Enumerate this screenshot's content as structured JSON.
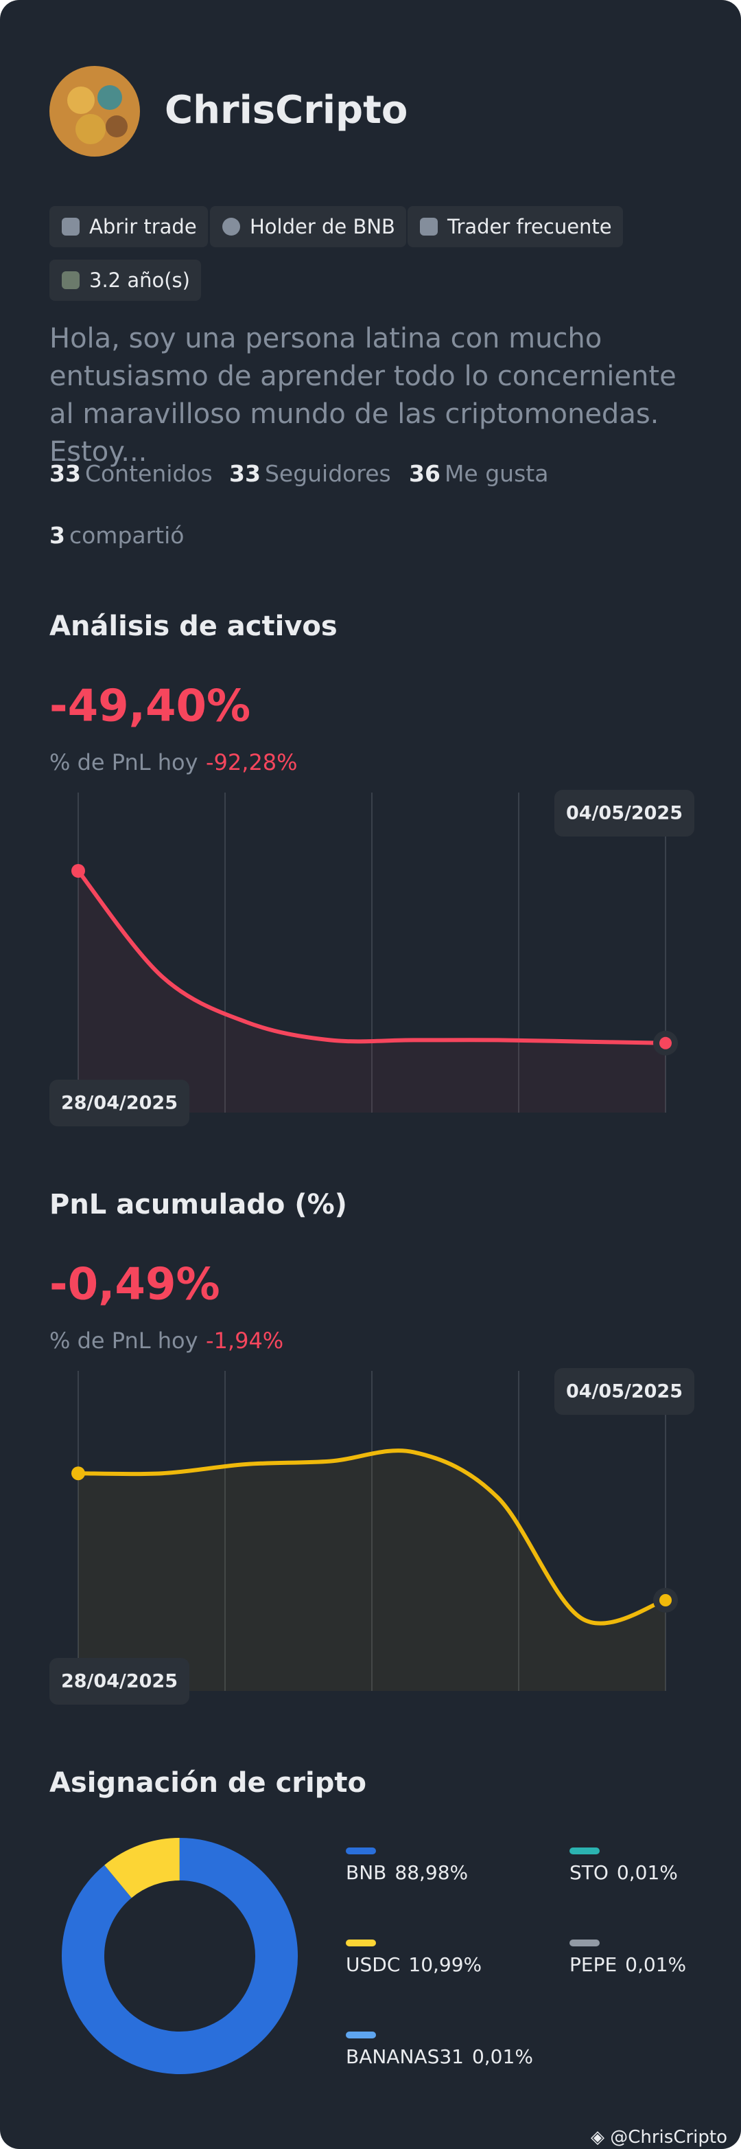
{
  "profile": {
    "name": "ChrisCripto",
    "badges": [
      "Abrir trade",
      "Holder de BNB",
      "Trader frecuente",
      "3.2 año(s)"
    ],
    "bio": "Hola, soy una persona latina con mucho entusiasmo de aprender todo lo concerniente al maravilloso mundo de las criptomonedas. Estoy...",
    "stats": [
      {
        "count": "33",
        "label": "Contenidos"
      },
      {
        "count": "33",
        "label": "Seguidores"
      },
      {
        "count": "36",
        "label": "Me gusta"
      },
      {
        "count": "3",
        "label": "compartió"
      }
    ]
  },
  "chart_data": [
    {
      "type": "line",
      "title": "Análisis de activos",
      "headline": "-49,40%",
      "pnl_label": "% de PnL hoy",
      "pnl_today": "-92,28%",
      "categories": [
        "28/04/2025",
        null,
        null,
        null,
        null,
        null,
        null,
        "04/05/2025"
      ],
      "series": [
        {
          "color": "#f6465d",
          "values": [
            80,
            45,
            30,
            24,
            24,
            24,
            23.5,
            23
          ]
        }
      ],
      "ylim": [
        0,
        100
      ]
    },
    {
      "type": "line",
      "title": "PnL acumulado (%)",
      "headline": "-0,49%",
      "pnl_label": "% de PnL hoy",
      "pnl_today": "-1,94%",
      "categories": [
        "28/04/2025",
        null,
        null,
        null,
        null,
        null,
        null,
        "04/05/2025"
      ],
      "series": [
        {
          "color": "#f0b90b",
          "values": [
            72,
            72,
            75,
            76,
            79,
            64,
            24,
            30
          ]
        }
      ],
      "ylim": [
        0,
        100
      ]
    },
    {
      "type": "pie",
      "title": "Asignación de cripto",
      "categories": [
        "BNB",
        "USDC",
        "BANANAS31",
        "STO",
        "PEPE"
      ],
      "values": [
        88.98,
        10.99,
        0.01,
        0.01,
        0.01
      ],
      "value_labels": [
        "88,98%",
        "10,99%",
        "0,01%",
        "0,01%",
        "0,01%"
      ],
      "colors": [
        "#2a6fdb",
        "#fcd535",
        "#5ea5ef",
        "#2bb3b1",
        "#929aa5"
      ]
    }
  ],
  "footer": "@ChrisCripto"
}
